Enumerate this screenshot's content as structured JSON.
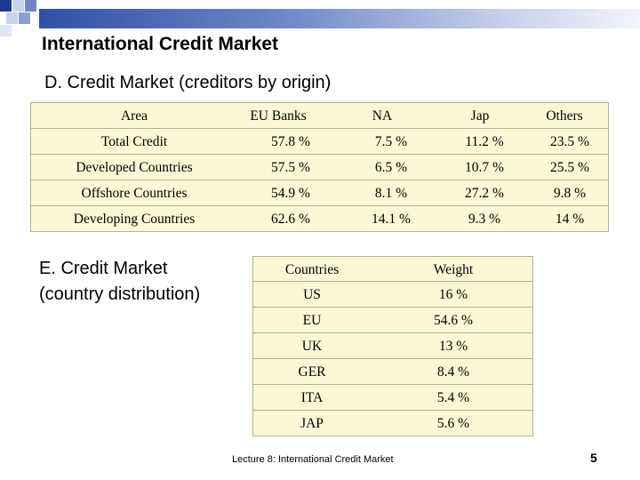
{
  "slide": {
    "title": "International Credit Market",
    "footer": "Lecture 8: International Credit Market",
    "page_number": "5"
  },
  "section_d": {
    "heading": "D. Credit Market (creditors by origin)",
    "headers": [
      "Area",
      "EU Banks",
      "NA",
      "Jap",
      "Others"
    ],
    "rows": [
      [
        "Total Credit",
        "57.8 %",
        "7.5 %",
        "11.2 %",
        "23.5 %"
      ],
      [
        "Developed Countries",
        "57.5 %",
        "6.5 %",
        "10.7 %",
        "25.5 %"
      ],
      [
        "Offshore Countries",
        "54.9 %",
        "8.1 %",
        "27.2 %",
        "9.8 %"
      ],
      [
        "Developing Countries",
        "62.6 %",
        "14.1 %",
        "9.3 %",
        "14 %"
      ]
    ]
  },
  "section_e": {
    "heading_line1": "E. Credit Market",
    "heading_line2": "(country distribution)",
    "headers": [
      "Countries",
      "Weight"
    ],
    "rows": [
      [
        "US",
        "16 %"
      ],
      [
        "EU",
        "54.6 %"
      ],
      [
        "UK",
        "13 %"
      ],
      [
        "GER",
        "8.4 %"
      ],
      [
        "ITA",
        "5.4 %"
      ],
      [
        "JAP",
        "5.6 %"
      ]
    ]
  },
  "colors": {
    "table_fill": "#fbf8d6",
    "table_border": "#b8b08a",
    "accent": "#3050a6"
  }
}
